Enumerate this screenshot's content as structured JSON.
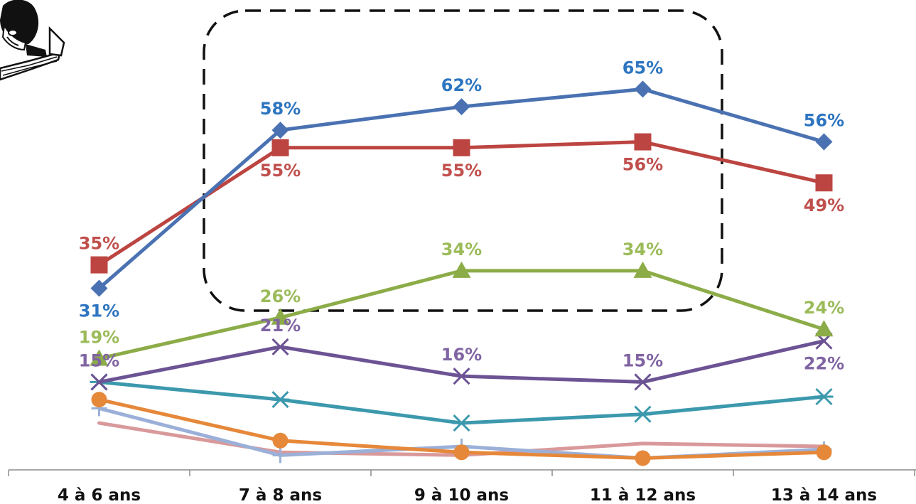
{
  "chart_data": {
    "type": "line",
    "categories": [
      "4 à 6 ans",
      "7 à 8 ans",
      "9 à 10 ans",
      "11 à 12 ans",
      "13 à 14 ans"
    ],
    "ylim": [
      0,
      70
    ],
    "grid": false,
    "legend": "none",
    "series": [
      {
        "color": "#4a72b2",
        "label_color": "#2e75c0",
        "marker": "diamond",
        "values": [
          31,
          58,
          62,
          65,
          56
        ],
        "labels": [
          "31%",
          "58%",
          "62%",
          "65%",
          "56%"
        ],
        "label_pos": [
          "below",
          "above",
          "above",
          "above",
          "above"
        ]
      },
      {
        "color": "#bc4541",
        "label_color": "#c0504d",
        "marker": "square",
        "values": [
          35,
          55,
          55,
          56,
          49
        ],
        "labels": [
          "35%",
          "55%",
          "55%",
          "56%",
          "49%"
        ],
        "label_pos": [
          "above",
          "below",
          "below",
          "below",
          "below"
        ]
      },
      {
        "color": "#8cac48",
        "label_color": "#9bbb59",
        "marker": "triangle",
        "values": [
          19,
          26,
          34,
          34,
          24
        ],
        "labels": [
          "19%",
          "26%",
          "34%",
          "34%",
          "24%"
        ],
        "label_pos": [
          "above",
          "above",
          "above",
          "above",
          "above"
        ]
      },
      {
        "color": "#6c5394",
        "label_color": "#8064a2",
        "marker": "x",
        "values": [
          15,
          21,
          16,
          15,
          22
        ],
        "labels": [
          "15%",
          "21%",
          "16%",
          "15%",
          "22%"
        ],
        "label_pos": [
          "above",
          "above",
          "above",
          "above",
          "below"
        ]
      },
      {
        "color": "#3c99ad",
        "marker": "star",
        "values": [
          15,
          12,
          8,
          9.5,
          12.5
        ]
      },
      {
        "color": "#e6883a",
        "marker": "circle",
        "values": [
          12,
          5,
          3,
          2,
          3
        ]
      },
      {
        "color": "#d9999a",
        "marker": "none",
        "values": [
          8,
          3,
          2.5,
          4.5,
          4
        ]
      },
      {
        "color": "#9bb0d8",
        "marker": "plus",
        "values": [
          10.5,
          2.5,
          4,
          2,
          3.5
        ]
      }
    ],
    "highlight_box": {
      "from_category": 1,
      "to_category": 3,
      "style": "dashed",
      "color": "#111111"
    }
  },
  "decoration": {
    "icon": "reading-boy-icon"
  }
}
